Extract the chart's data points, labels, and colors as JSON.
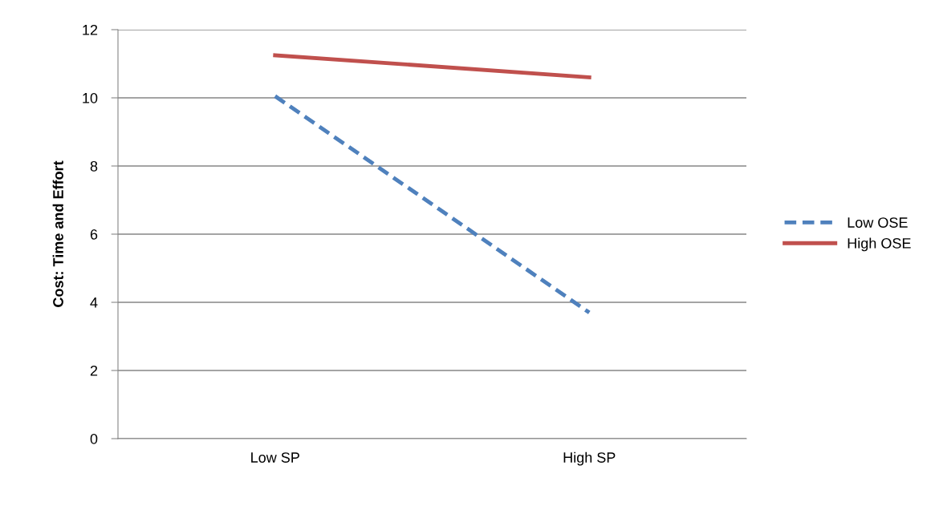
{
  "chart_data": {
    "type": "line",
    "ylabel": "Cost: Time and Effort",
    "categories": [
      "Low SP",
      "High SP"
    ],
    "series": [
      {
        "name": "Low OSE",
        "color": "#4f81bd",
        "values": [
          10.05,
          3.7
        ],
        "line_style": "dashed"
      },
      {
        "name": "High OSE",
        "color": "#c0504d",
        "values": [
          11.25,
          10.6
        ],
        "line_style": "solid"
      }
    ],
    "ylim": [
      0,
      12
    ],
    "yticks": [
      0,
      2,
      4,
      6,
      8,
      10,
      12
    ],
    "grid": "y",
    "legend": "right",
    "marker": "none"
  }
}
